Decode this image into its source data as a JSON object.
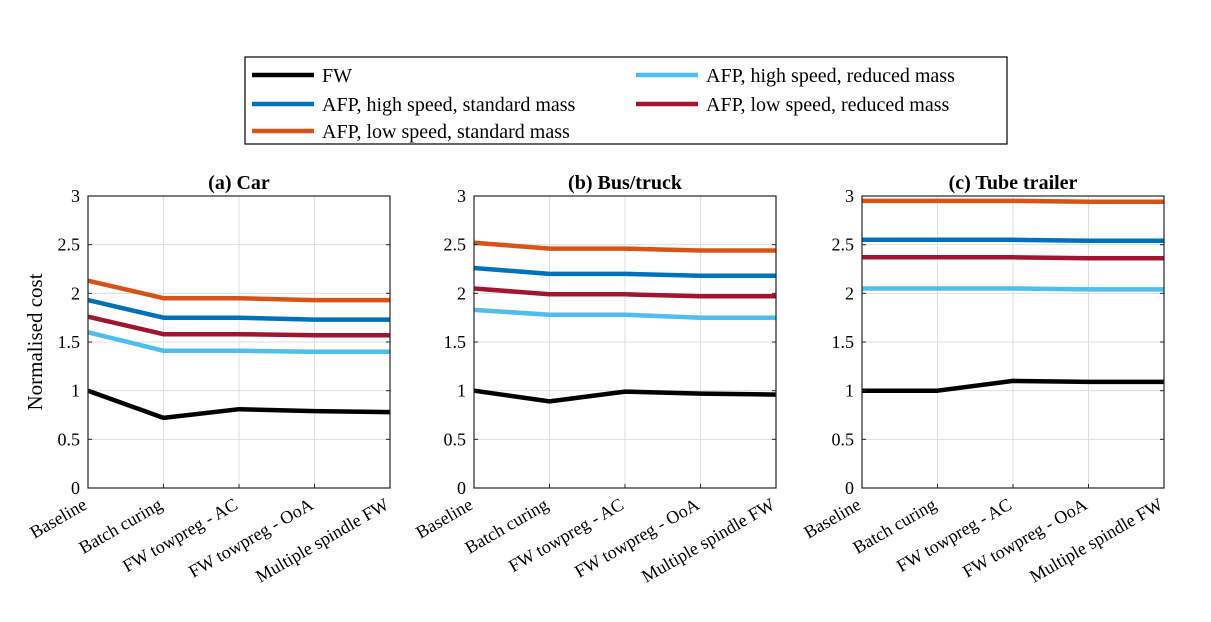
{
  "legend": {
    "entries": [
      {
        "label": "FW",
        "color": "#000000"
      },
      {
        "label": "AFP, high speed, reduced mass",
        "color": "#4DBEEE"
      },
      {
        "label": "AFP, high speed, standard mass",
        "color": "#0072BD"
      },
      {
        "label": "AFP, low speed, reduced mass",
        "color": "#A2142F"
      },
      {
        "label": "AFP, low speed, standard mass",
        "color": "#D95319"
      }
    ]
  },
  "chart_data": [
    {
      "type": "line",
      "title": "(a) Car",
      "ylabel": "Normalised cost",
      "xlabel": "",
      "categories": [
        "Baseline",
        "Batch curing",
        "FW towpreg - AC",
        "FW towpreg - OoA",
        "Multiple spindle FW"
      ],
      "ylim": [
        0,
        3
      ],
      "yticks": [
        "0",
        "0.5",
        "1",
        "1.5",
        "2",
        "2.5",
        "3"
      ],
      "grid": true,
      "series": [
        {
          "name": "AFP, low speed, standard mass",
          "color": "#D95319",
          "values": [
            2.13,
            1.95,
            1.95,
            1.93,
            1.93
          ]
        },
        {
          "name": "AFP, high speed, standard mass",
          "color": "#0072BD",
          "values": [
            1.93,
            1.75,
            1.75,
            1.73,
            1.73
          ]
        },
        {
          "name": "AFP, low speed, reduced mass",
          "color": "#A2142F",
          "values": [
            1.76,
            1.58,
            1.58,
            1.57,
            1.57
          ]
        },
        {
          "name": "AFP, high speed, reduced mass",
          "color": "#4DBEEE",
          "values": [
            1.6,
            1.41,
            1.41,
            1.4,
            1.4
          ]
        },
        {
          "name": "FW",
          "color": "#000000",
          "values": [
            1.0,
            0.72,
            0.81,
            0.79,
            0.78
          ]
        }
      ]
    },
    {
      "type": "line",
      "title": "(b) Bus/truck",
      "ylabel": "",
      "xlabel": "",
      "categories": [
        "Baseline",
        "Batch curing",
        "FW towpreg - AC",
        "FW towpreg - OoA",
        "Multiple spindle FW"
      ],
      "ylim": [
        0,
        3
      ],
      "yticks": [
        "0",
        "0.5",
        "1",
        "1.5",
        "2",
        "2.5",
        "3"
      ],
      "grid": true,
      "series": [
        {
          "name": "AFP, low speed, standard mass",
          "color": "#D95319",
          "values": [
            2.52,
            2.46,
            2.46,
            2.44,
            2.44
          ]
        },
        {
          "name": "AFP, high speed, standard mass",
          "color": "#0072BD",
          "values": [
            2.26,
            2.2,
            2.2,
            2.18,
            2.18
          ]
        },
        {
          "name": "AFP, low speed, reduced mass",
          "color": "#A2142F",
          "values": [
            2.05,
            1.99,
            1.99,
            1.97,
            1.97
          ]
        },
        {
          "name": "AFP, high speed, reduced mass",
          "color": "#4DBEEE",
          "values": [
            1.83,
            1.78,
            1.78,
            1.75,
            1.75
          ]
        },
        {
          "name": "FW",
          "color": "#000000",
          "values": [
            1.0,
            0.89,
            0.99,
            0.97,
            0.96
          ]
        }
      ]
    },
    {
      "type": "line",
      "title": "(c) Tube trailer",
      "ylabel": "",
      "xlabel": "",
      "categories": [
        "Baseline",
        "Batch curing",
        "FW towpreg - AC",
        "FW towpreg - OoA",
        "Multiple spindle FW"
      ],
      "ylim": [
        0,
        3
      ],
      "yticks": [
        "0",
        "0.5",
        "1",
        "1.5",
        "2",
        "2.5",
        "3"
      ],
      "grid": true,
      "series": [
        {
          "name": "AFP, low speed, standard mass",
          "color": "#D95319",
          "values": [
            2.95,
            2.95,
            2.95,
            2.94,
            2.94
          ]
        },
        {
          "name": "AFP, high speed, standard mass",
          "color": "#0072BD",
          "values": [
            2.55,
            2.55,
            2.55,
            2.54,
            2.54
          ]
        },
        {
          "name": "AFP, low speed, reduced mass",
          "color": "#A2142F",
          "values": [
            2.37,
            2.37,
            2.37,
            2.36,
            2.36
          ]
        },
        {
          "name": "AFP, high speed, reduced mass",
          "color": "#4DBEEE",
          "values": [
            2.05,
            2.05,
            2.05,
            2.04,
            2.04
          ]
        },
        {
          "name": "FW",
          "color": "#000000",
          "values": [
            1.0,
            1.0,
            1.1,
            1.09,
            1.09
          ]
        }
      ]
    }
  ]
}
